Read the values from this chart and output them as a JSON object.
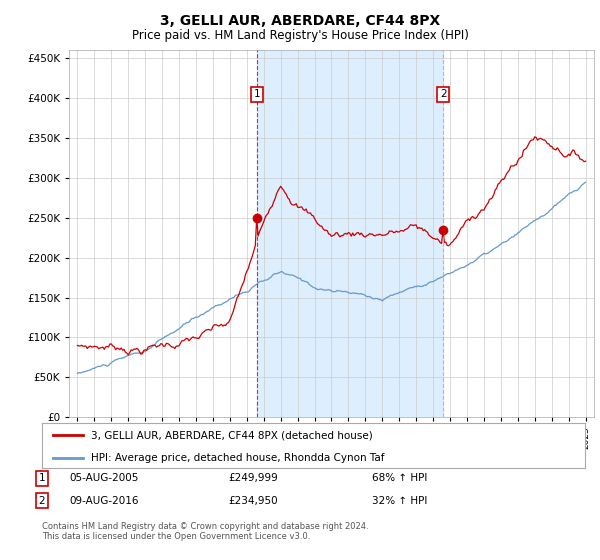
{
  "title": "3, GELLI AUR, ABERDARE, CF44 8PX",
  "subtitle": "Price paid vs. HM Land Registry's House Price Index (HPI)",
  "red_label": "3, GELLI AUR, ABERDARE, CF44 8PX (detached house)",
  "blue_label": "HPI: Average price, detached house, Rhondda Cynon Taf",
  "marker1_date": "05-AUG-2005",
  "marker1_price": "£249,999",
  "marker1_hpi": "68% ↑ HPI",
  "marker1_year": 2005.6,
  "marker2_date": "09-AUG-2016",
  "marker2_price": "£234,950",
  "marker2_hpi": "32% ↑ HPI",
  "marker2_year": 2016.6,
  "ylim": [
    0,
    460000
  ],
  "yticks": [
    0,
    50000,
    100000,
    150000,
    200000,
    250000,
    300000,
    350000,
    400000,
    450000
  ],
  "footer": "Contains HM Land Registry data © Crown copyright and database right 2024.\nThis data is licensed under the Open Government Licence v3.0.",
  "bg_color": "#ffffff",
  "grid_color": "#cccccc",
  "red_color": "#cc0000",
  "blue_color": "#6699cc",
  "shade_color": "#ddeeff",
  "marker2_line_color": "#aaaaaa"
}
